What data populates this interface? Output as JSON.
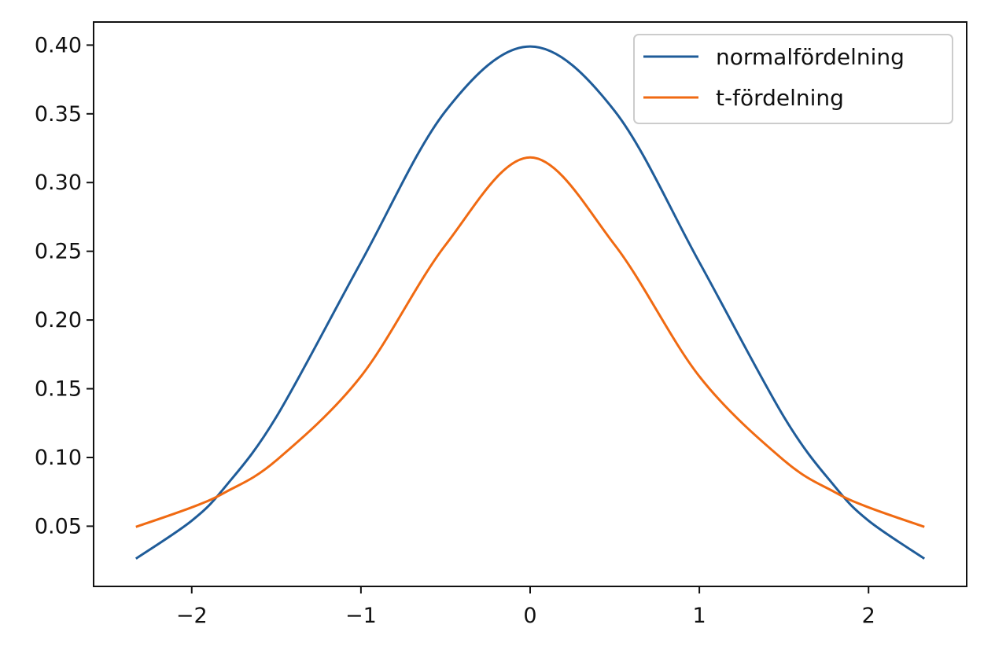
{
  "chart_data": {
    "type": "line",
    "title": "",
    "xlabel": "",
    "ylabel": "",
    "xlim": [
      -2.58,
      2.58
    ],
    "ylim": [
      0.0062,
      0.4168
    ],
    "grid": false,
    "legend_position": "top-right",
    "x_ticks": [
      {
        "value": -2,
        "label": "−2"
      },
      {
        "value": -1,
        "label": "−1"
      },
      {
        "value": 0,
        "label": "0"
      },
      {
        "value": 1,
        "label": "1"
      },
      {
        "value": 2,
        "label": "2"
      }
    ],
    "y_ticks": [
      {
        "value": 0.05,
        "label": "0.05"
      },
      {
        "value": 0.1,
        "label": "0.10"
      },
      {
        "value": 0.15,
        "label": "0.15"
      },
      {
        "value": 0.2,
        "label": "0.20"
      },
      {
        "value": 0.25,
        "label": "0.25"
      },
      {
        "value": 0.3,
        "label": "0.30"
      },
      {
        "value": 0.35,
        "label": "0.35"
      },
      {
        "value": 0.4,
        "label": "0.40"
      }
    ],
    "x": [
      -2.33,
      -2.0,
      -1.8,
      -1.5,
      -1.0,
      -0.5,
      0.0,
      0.5,
      1.0,
      1.5,
      1.8,
      2.0,
      2.33
    ],
    "series": [
      {
        "name": "normalfördelning",
        "color": "#1f5c99",
        "values": [
          0.0264,
          0.054,
          0.079,
          0.1295,
          0.242,
          0.352,
          0.399,
          0.352,
          0.242,
          0.1295,
          0.079,
          0.054,
          0.0264
        ]
      },
      {
        "name": "t-fördelning",
        "color": "#f06a12",
        "values": [
          0.0495,
          0.0637,
          0.0748,
          0.0979,
          0.159,
          0.2546,
          0.3183,
          0.2546,
          0.159,
          0.0979,
          0.0748,
          0.0637,
          0.0495
        ]
      }
    ]
  }
}
